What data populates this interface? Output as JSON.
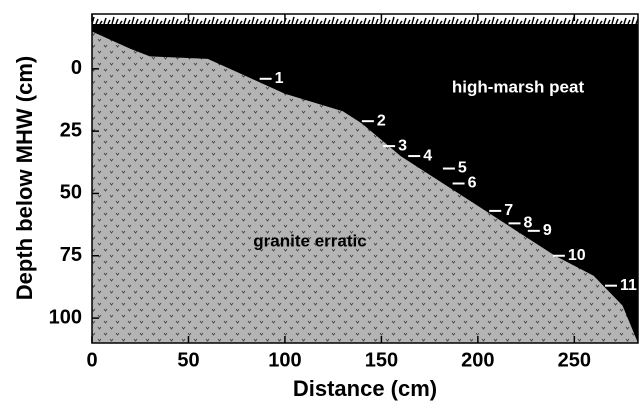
{
  "chart_data": {
    "type": "cross-section",
    "x_label": "Distance (cm)",
    "y_label": "Depth below MHW (cm)",
    "xlim": [
      0,
      283
    ],
    "ylim": [
      -22,
      110
    ],
    "xticks": [
      0,
      50,
      100,
      150,
      200,
      250
    ],
    "yticks": [
      0,
      25,
      50,
      75,
      100
    ],
    "y_inverted": true,
    "surface": {
      "name": "high-marsh peat",
      "color": "#000000",
      "x": [
        0,
        283
      ],
      "depth": [
        -18,
        -18
      ]
    },
    "boundary": {
      "name": "granite erratic",
      "color": "#b4b4b4",
      "x": [
        0,
        20,
        30,
        60,
        80,
        100,
        130,
        140,
        160,
        180,
        200,
        220,
        240,
        260,
        275,
        283
      ],
      "depth": [
        -15,
        -8,
        -5,
        -4,
        3,
        10,
        17,
        22,
        35,
        45,
        55,
        65,
        75,
        83,
        95,
        110
      ]
    },
    "samples": {
      "color": "#ffffff",
      "labels": [
        "1",
        "2",
        "3",
        "4",
        "5",
        "6",
        "7",
        "8",
        "9",
        "10",
        "11"
      ],
      "x": [
        90,
        143,
        154,
        167,
        185,
        190,
        209,
        219,
        229,
        242,
        269
      ],
      "depth": [
        4,
        21,
        31,
        35,
        40,
        46,
        57,
        62,
        65,
        75,
        87
      ]
    }
  }
}
